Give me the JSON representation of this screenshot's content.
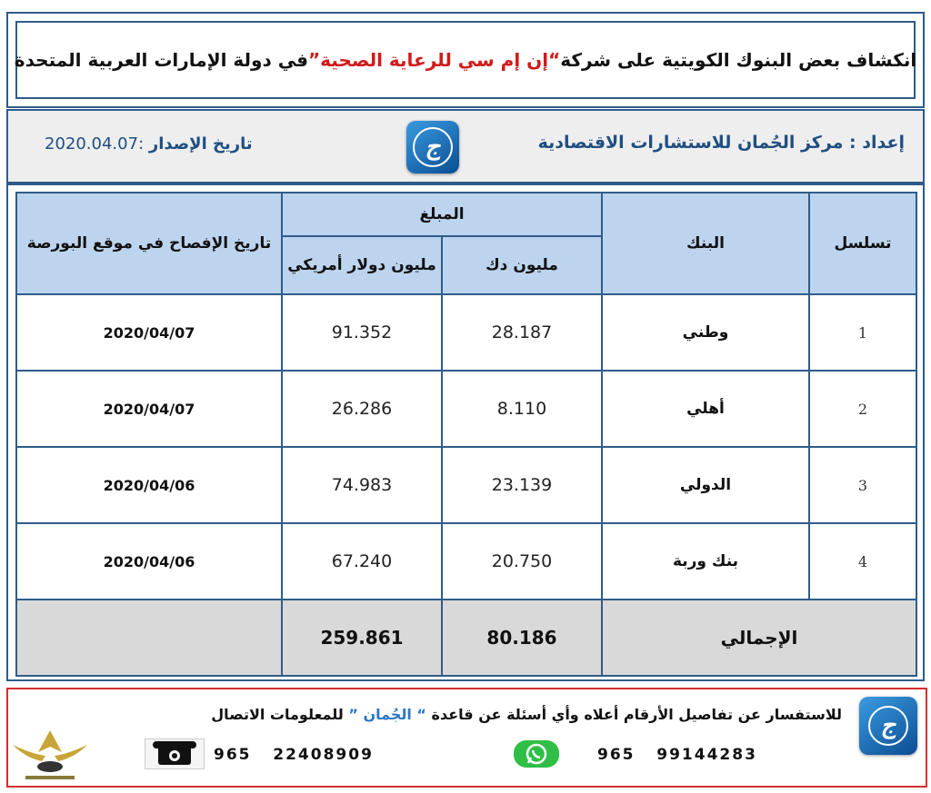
{
  "header": {
    "title_start": "انكشاف بعض البنوك الكويتية على شركة ",
    "title_company": "“إن إم سي للرعاية الصحية”",
    "title_end": " في دولة الإمارات العربية المتحدة"
  },
  "info": {
    "prepared_label": "إعداد",
    "prepared_sep": " : ",
    "prepared_by": "مركز الجُمان للاستشارات الاقتصادية",
    "issue_label": "تاريخ الإصدار",
    "issue_sep": ": ",
    "issue_date": "2020.04.07"
  },
  "table": {
    "headers": {
      "serial": "تسلسل",
      "bank": "البنك",
      "amount": "المبلغ",
      "kd": "مليون دك",
      "usd": "مليون دولار أمريكي",
      "date": "تاريخ الإفصاح في موقع البورصة"
    },
    "rows": [
      {
        "serial": "1",
        "bank": "وطني",
        "kd": "28.187",
        "usd": "91.352",
        "date": "2020/04/07"
      },
      {
        "serial": "2",
        "bank": "أهلي",
        "kd": "8.110",
        "usd": "26.286",
        "date": "2020/04/07"
      },
      {
        "serial": "3",
        "bank": "الدولي",
        "kd": "23.139",
        "usd": "74.983",
        "date": "2020/04/06"
      },
      {
        "serial": "4",
        "bank": "بنك وربة",
        "kd": "20.750",
        "usd": "67.240",
        "date": "2020/04/06"
      }
    ],
    "total": {
      "label": "الإجمالي",
      "kd": "80.186",
      "usd": "259.861"
    }
  },
  "footer": {
    "text_start": "للاستفسار عن تفاصيل الأرقام أعلاه وأي أسئلة عن قاعدة ",
    "text_brand": "“ الجُمان ”",
    "text_end": " للمعلومات الاتصال",
    "phone_code": "965",
    "phone_number": "22408909",
    "whatsapp_code": "965",
    "whatsapp_number": "99144283"
  },
  "colors": {
    "border": "#2f5c8a",
    "header_fill": "#bcd4ee",
    "total_fill": "#d9d9d9",
    "accent_red": "#d11a1a",
    "footer_border": "#d32f2f"
  }
}
